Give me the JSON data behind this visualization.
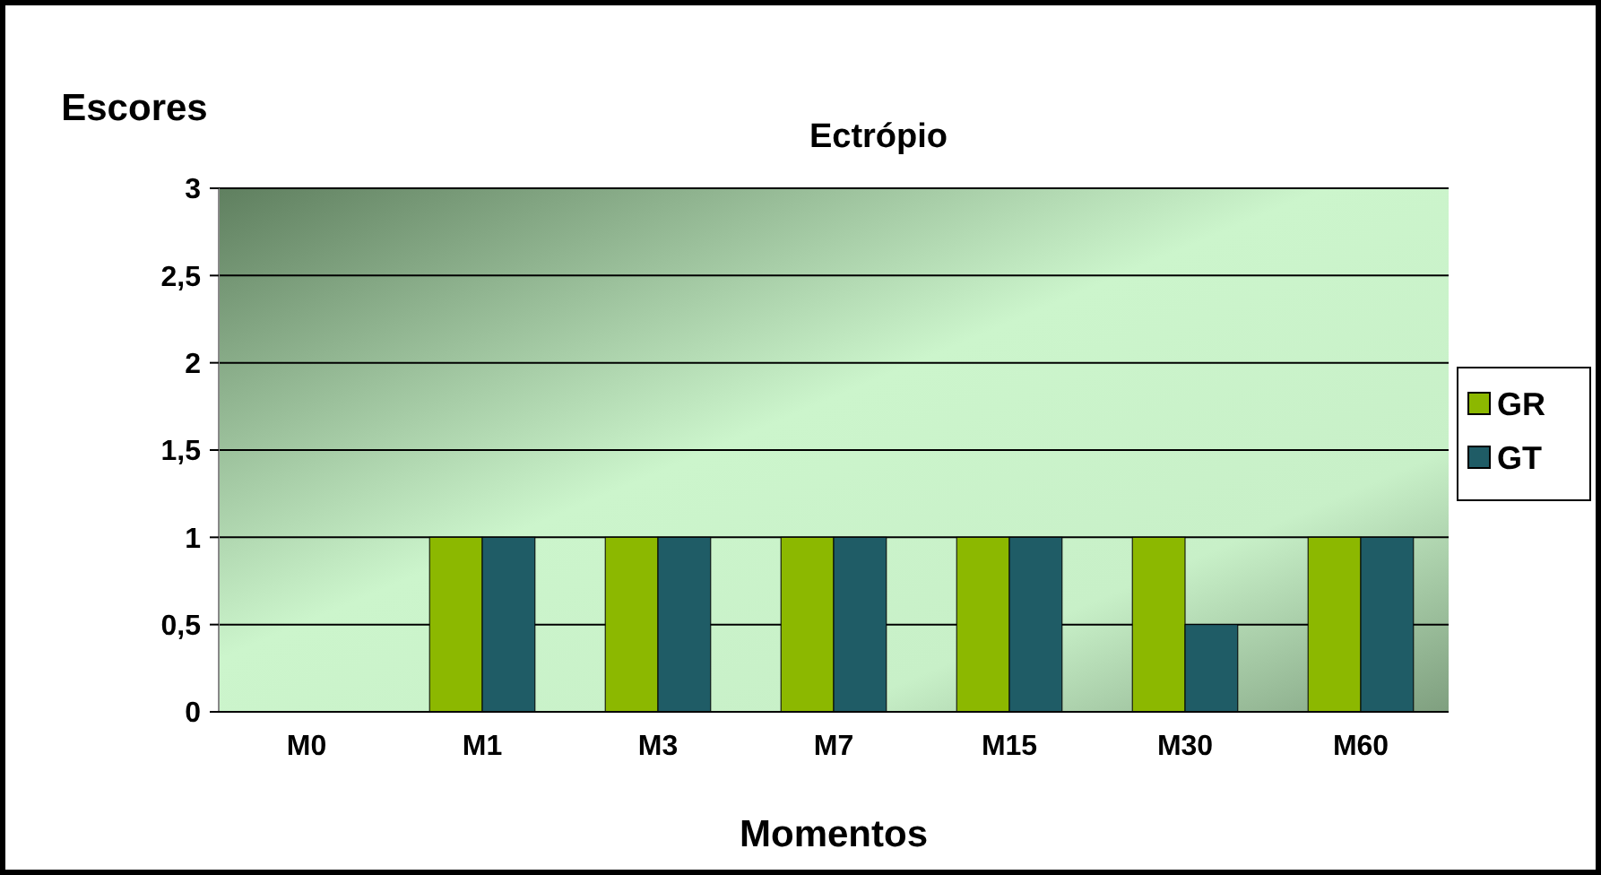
{
  "chart_data": {
    "type": "bar",
    "title": "Ectrópio",
    "xlabel": "Momentos",
    "ylabel": "Escores",
    "categories": [
      "M0",
      "M1",
      "M3",
      "M7",
      "M15",
      "M30",
      "M60"
    ],
    "series": [
      {
        "name": "GR",
        "color": "#8cb800",
        "values": [
          0,
          1,
          1,
          1,
          1,
          1,
          1
        ]
      },
      {
        "name": "GT",
        "color": "#1f5c66",
        "values": [
          0,
          1,
          1,
          1,
          1,
          0.5,
          1
        ]
      }
    ],
    "ylim": [
      0,
      3
    ],
    "yticks": [
      0,
      {
        "value": 0.5,
        "label": "0,5"
      },
      1,
      {
        "value": 1.5,
        "label": "1,5"
      },
      2,
      {
        "value": 2.5,
        "label": "2,5"
      },
      3
    ],
    "grid": "y",
    "legend": "right"
  }
}
